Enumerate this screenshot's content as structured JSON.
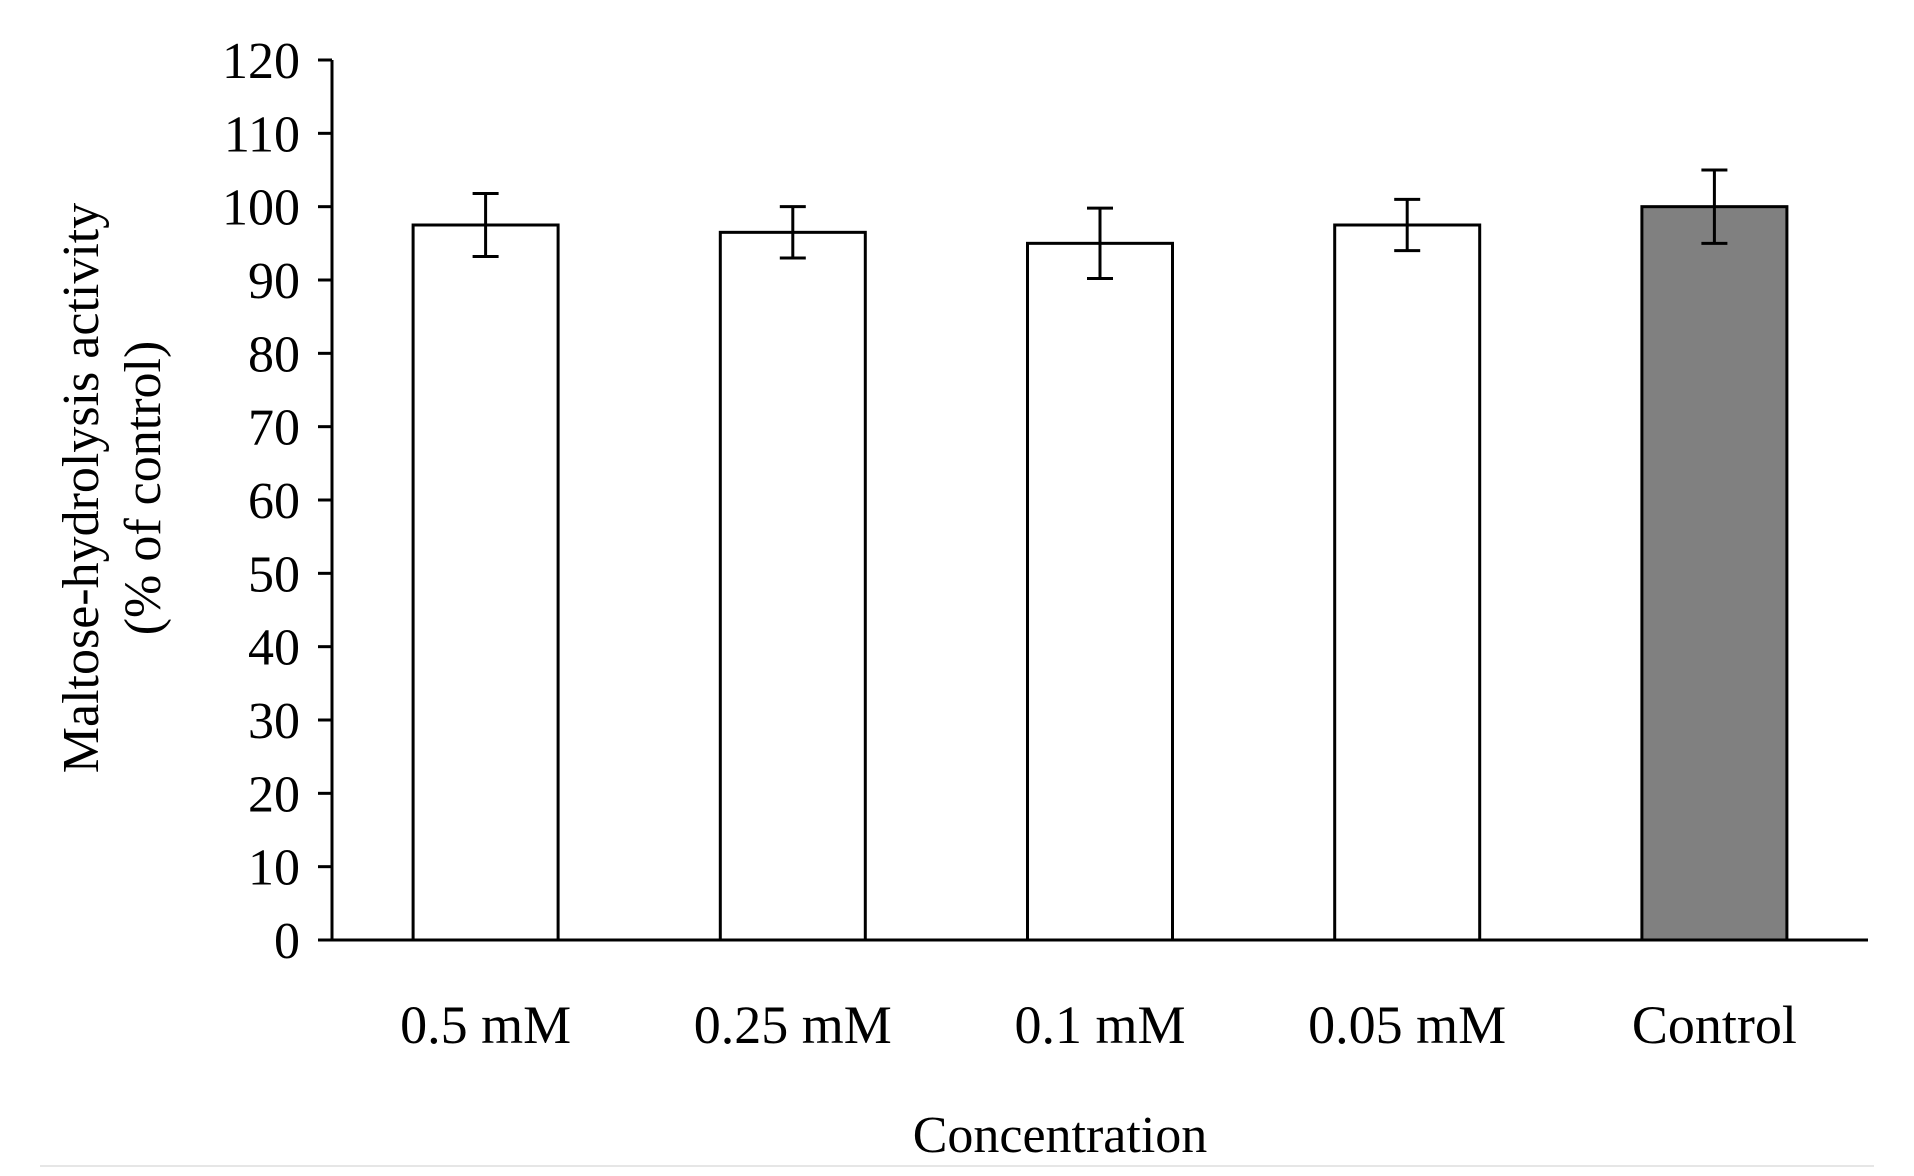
{
  "chart_data": {
    "type": "bar",
    "title": "",
    "xlabel": "Concentration",
    "ylabel_lines": [
      "Maltose-hydrolysis activity",
      "(% of control)"
    ],
    "categories": [
      "0.5 mM",
      "0.25 mM",
      "0.1 mM",
      "0.05 mM",
      "Control"
    ],
    "values": [
      97.5,
      96.5,
      95,
      97.5,
      100
    ],
    "errors": [
      4.3,
      3.5,
      4.8,
      3.5,
      5
    ],
    "bar_colors": [
      "#ffffff",
      "#ffffff",
      "#ffffff",
      "#ffffff",
      "#808080"
    ],
    "ylim": [
      0,
      120
    ],
    "yticks": [
      0,
      10,
      20,
      30,
      40,
      50,
      60,
      70,
      80,
      90,
      100,
      110,
      120
    ],
    "grid": false,
    "legend": "none"
  }
}
